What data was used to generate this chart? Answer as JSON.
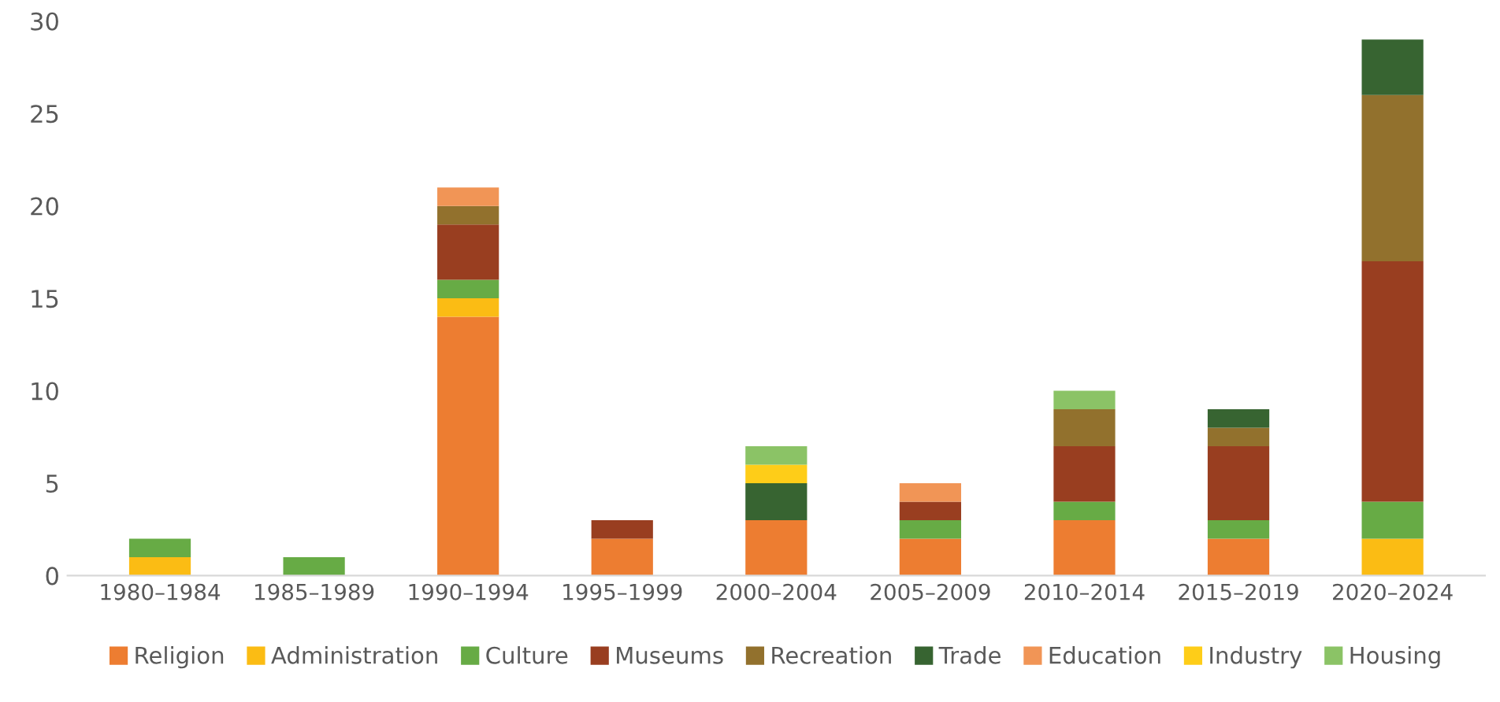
{
  "chart_data": {
    "type": "bar",
    "stacked": true,
    "categories": [
      "1980–1984",
      "1985–1989",
      "1990–1994",
      "1995–1999",
      "2000–2004",
      "2005–2009",
      "2010–2014",
      "2015–2019",
      "2020–2024"
    ],
    "series": [
      {
        "name": "Religion",
        "color": "#ed7d31",
        "values": [
          0,
          0,
          14,
          2,
          3,
          2,
          3,
          2,
          0
        ]
      },
      {
        "name": "Administration",
        "color": "#fbbc14",
        "values": [
          1,
          0,
          1,
          0,
          0,
          0,
          0,
          0,
          2
        ]
      },
      {
        "name": "Culture",
        "color": "#67ab45",
        "values": [
          1,
          1,
          1,
          0,
          0,
          1,
          1,
          1,
          2
        ]
      },
      {
        "name": "Museums",
        "color": "#993e20",
        "values": [
          0,
          0,
          3,
          1,
          0,
          1,
          3,
          4,
          13
        ]
      },
      {
        "name": "Recreation",
        "color": "#92712d",
        "values": [
          0,
          0,
          1,
          0,
          0,
          0,
          2,
          1,
          9
        ]
      },
      {
        "name": "Trade",
        "color": "#376431",
        "values": [
          0,
          0,
          0,
          0,
          2,
          0,
          0,
          1,
          3
        ]
      },
      {
        "name": "Education",
        "color": "#f19556",
        "values": [
          0,
          0,
          1,
          0,
          0,
          1,
          0,
          0,
          0
        ]
      },
      {
        "name": "Industry",
        "color": "#fecd18",
        "values": [
          0,
          0,
          0,
          0,
          1,
          0,
          0,
          0,
          0
        ]
      },
      {
        "name": "Housing",
        "color": "#8bc366",
        "values": [
          0,
          0,
          0,
          0,
          1,
          0,
          1,
          0,
          0
        ]
      }
    ],
    "ylim": [
      0,
      30
    ],
    "yticks": [
      0,
      5,
      10,
      15,
      20,
      25,
      30
    ],
    "grid": false,
    "legend": "bottom"
  }
}
